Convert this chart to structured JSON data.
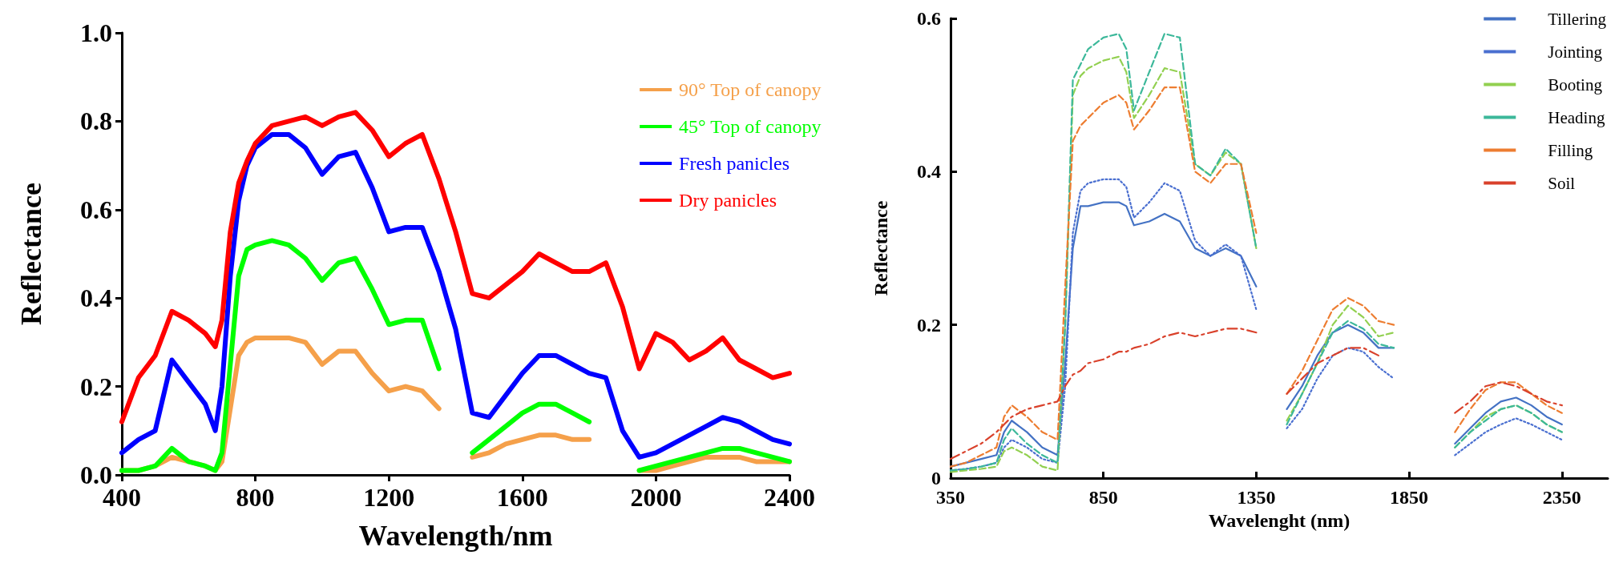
{
  "chart_data": [
    {
      "type": "line",
      "xlabel": "Wavelength/nm",
      "ylabel": "Reflectance",
      "xlim": [
        400,
        2400
      ],
      "xticks": [
        400,
        800,
        1200,
        1600,
        2000,
        2400
      ],
      "ylim": [
        0,
        1
      ],
      "yticks": [
        {
          "value": 0,
          "label": "0.0"
        },
        0.2,
        0.4,
        0.6,
        0.8,
        {
          "value": 1,
          "label": "1.0"
        }
      ],
      "grid": false,
      "legend": "top right",
      "marker": "none",
      "line_style": "solid",
      "x": [
        400,
        450,
        500,
        550,
        600,
        650,
        680,
        700,
        725,
        750,
        775,
        800,
        850,
        900,
        950,
        1000,
        1050,
        1100,
        1150,
        1200,
        1250,
        1300,
        1350,
        1400,
        1450,
        1500,
        1550,
        1600,
        1650,
        1700,
        1750,
        1800,
        1850,
        1900,
        1950,
        2000,
        2050,
        2100,
        2150,
        2200,
        2250,
        2300,
        2350,
        2400
      ],
      "series": [
        {
          "name": "90° Top of canopy",
          "color": "#f5a04a",
          "values": [
            0.01,
            0.01,
            0.02,
            0.04,
            0.03,
            0.02,
            0.01,
            0.03,
            0.15,
            0.27,
            0.3,
            0.31,
            0.31,
            0.31,
            0.3,
            0.25,
            0.28,
            0.28,
            0.23,
            0.19,
            0.2,
            0.19,
            0.15,
            null,
            0.04,
            0.05,
            0.07,
            0.08,
            0.09,
            0.09,
            0.08,
            0.08,
            null,
            null,
            0.01,
            0.01,
            0.02,
            0.03,
            0.04,
            0.04,
            0.04,
            0.03,
            0.03,
            0.03
          ]
        },
        {
          "name": "45° Top of canopy",
          "color": "#00ff00",
          "values": [
            0.01,
            0.01,
            0.02,
            0.06,
            0.03,
            0.02,
            0.01,
            0.05,
            0.25,
            0.45,
            0.51,
            0.52,
            0.53,
            0.52,
            0.49,
            0.44,
            0.48,
            0.49,
            0.42,
            0.34,
            0.35,
            0.35,
            0.24,
            null,
            0.05,
            0.08,
            0.11,
            0.14,
            0.16,
            0.16,
            0.14,
            0.12,
            null,
            null,
            0.01,
            0.02,
            0.03,
            0.04,
            0.05,
            0.06,
            0.06,
            0.05,
            0.04,
            0.03
          ]
        },
        {
          "name": "Fresh panicles",
          "color": "#0000ff",
          "values": [
            0.05,
            0.08,
            0.1,
            0.26,
            0.21,
            0.16,
            0.1,
            0.2,
            0.45,
            0.62,
            0.7,
            0.74,
            0.77,
            0.77,
            0.74,
            0.68,
            0.72,
            0.73,
            0.65,
            0.55,
            0.56,
            0.56,
            0.46,
            0.33,
            0.14,
            0.13,
            0.18,
            0.23,
            0.27,
            0.27,
            0.25,
            0.23,
            0.22,
            0.1,
            0.04,
            0.05,
            0.07,
            0.09,
            0.11,
            0.13,
            0.12,
            0.1,
            0.08,
            0.07
          ]
        },
        {
          "name": "Dry panicles",
          "color": "#ff0000",
          "values": [
            0.12,
            0.22,
            0.27,
            0.37,
            0.35,
            0.32,
            0.29,
            0.35,
            0.55,
            0.66,
            0.71,
            0.75,
            0.79,
            0.8,
            0.81,
            0.79,
            0.81,
            0.82,
            0.78,
            0.72,
            0.75,
            0.77,
            0.67,
            0.55,
            0.41,
            0.4,
            0.43,
            0.46,
            0.5,
            0.48,
            0.46,
            0.46,
            0.48,
            0.38,
            0.24,
            0.32,
            0.3,
            0.26,
            0.28,
            0.31,
            0.26,
            0.24,
            0.22,
            0.23
          ]
        }
      ]
    },
    {
      "type": "line",
      "xlabel": "Wavelenght (nm)",
      "ylabel": "Reflectance",
      "xlim": [
        350,
        2500
      ],
      "xticks": [
        350,
        850,
        1350,
        1850,
        2350
      ],
      "ylim": [
        0,
        0.6
      ],
      "yticks": [
        0,
        0.2,
        0.4,
        0.6
      ],
      "grid": false,
      "legend": "top right",
      "marker": "none",
      "x": [
        350,
        400,
        450,
        500,
        525,
        550,
        600,
        650,
        700,
        725,
        750,
        775,
        800,
        850,
        900,
        925,
        950,
        1000,
        1050,
        1100,
        1150,
        1200,
        1250,
        1300,
        1350,
        1400,
        1450,
        1500,
        1550,
        1600,
        1650,
        1700,
        1750,
        1800,
        1850,
        1900,
        1950,
        2000,
        2050,
        2100,
        2150,
        2200,
        2250,
        2300,
        2350
      ],
      "series": [
        {
          "name": "Tillering",
          "color": "#4472c4",
          "line_style": "solid",
          "values": [
            0.015,
            0.02,
            0.025,
            0.03,
            0.06,
            0.075,
            0.06,
            0.04,
            0.03,
            0.15,
            0.3,
            0.355,
            0.355,
            0.36,
            0.36,
            0.355,
            0.33,
            0.335,
            0.345,
            0.335,
            0.3,
            0.29,
            0.3,
            0.29,
            0.25,
            null,
            0.09,
            0.12,
            0.16,
            0.19,
            0.2,
            0.19,
            0.17,
            0.17,
            null,
            null,
            null,
            0.045,
            0.065,
            0.085,
            0.1,
            0.105,
            0.095,
            0.08,
            0.07
          ]
        },
        {
          "name": "Jointing",
          "color": "#4a6fd0",
          "line_style": "dotted",
          "values": [
            0.01,
            0.012,
            0.015,
            0.02,
            0.04,
            0.05,
            0.04,
            0.025,
            0.02,
            0.12,
            0.32,
            0.375,
            0.385,
            0.39,
            0.39,
            0.38,
            0.34,
            0.36,
            0.385,
            0.375,
            0.31,
            0.29,
            0.305,
            0.29,
            0.22,
            null,
            0.065,
            0.09,
            0.13,
            0.16,
            0.17,
            0.165,
            0.145,
            0.13,
            null,
            null,
            null,
            0.03,
            0.045,
            0.06,
            0.07,
            0.078,
            0.07,
            0.06,
            0.05
          ]
        },
        {
          "name": "Booting",
          "color": "#92d050",
          "line_style": "dashed",
          "values": [
            0.008,
            0.01,
            0.012,
            0.015,
            0.035,
            0.04,
            0.03,
            0.015,
            0.01,
            0.2,
            0.5,
            0.525,
            0.535,
            0.545,
            0.55,
            0.53,
            0.47,
            0.5,
            0.535,
            0.53,
            0.41,
            0.395,
            0.425,
            0.41,
            0.3,
            null,
            0.075,
            0.11,
            0.15,
            0.2,
            0.225,
            0.21,
            0.185,
            0.19,
            null,
            null,
            null,
            0.04,
            0.06,
            0.08,
            0.09,
            0.095,
            0.085,
            0.07,
            0.06
          ]
        },
        {
          "name": "Heading",
          "color": "#3cb89a",
          "line_style": "dashed",
          "values": [
            0.01,
            0.012,
            0.015,
            0.02,
            0.05,
            0.065,
            0.045,
            0.03,
            0.02,
            0.2,
            0.52,
            0.54,
            0.56,
            0.575,
            0.58,
            0.56,
            0.48,
            0.53,
            0.58,
            0.575,
            0.41,
            0.395,
            0.43,
            0.41,
            0.3,
            null,
            0.07,
            0.11,
            0.15,
            0.19,
            0.205,
            0.195,
            0.175,
            0.17,
            null,
            null,
            null,
            0.04,
            0.06,
            0.075,
            0.09,
            0.095,
            0.085,
            0.07,
            0.06
          ]
        },
        {
          "name": "Filling",
          "color": "#ed7d31",
          "line_style": "dashed",
          "values": [
            0.015,
            0.02,
            0.03,
            0.04,
            0.08,
            0.095,
            0.08,
            0.06,
            0.05,
            0.25,
            0.44,
            0.46,
            0.47,
            0.49,
            0.5,
            0.49,
            0.455,
            0.48,
            0.51,
            0.51,
            0.4,
            0.385,
            0.41,
            0.41,
            0.32,
            null,
            0.11,
            0.14,
            0.18,
            0.22,
            0.235,
            0.225,
            0.205,
            0.2,
            null,
            null,
            null,
            0.06,
            0.09,
            0.115,
            0.125,
            0.125,
            0.11,
            0.095,
            0.085
          ]
        },
        {
          "name": "Soil",
          "color": "#d9412b",
          "line_style": "dashdot",
          "values": [
            0.025,
            0.035,
            0.045,
            0.06,
            0.07,
            0.08,
            0.09,
            0.095,
            0.1,
            0.12,
            0.135,
            0.14,
            0.15,
            0.155,
            0.165,
            0.165,
            0.17,
            0.175,
            0.185,
            0.19,
            0.185,
            0.19,
            0.195,
            0.195,
            0.19,
            null,
            0.11,
            0.13,
            0.15,
            0.16,
            0.17,
            0.17,
            0.16,
            null,
            null,
            null,
            null,
            0.085,
            0.1,
            0.12,
            0.125,
            0.12,
            0.11,
            0.1,
            0.095
          ]
        }
      ]
    }
  ]
}
